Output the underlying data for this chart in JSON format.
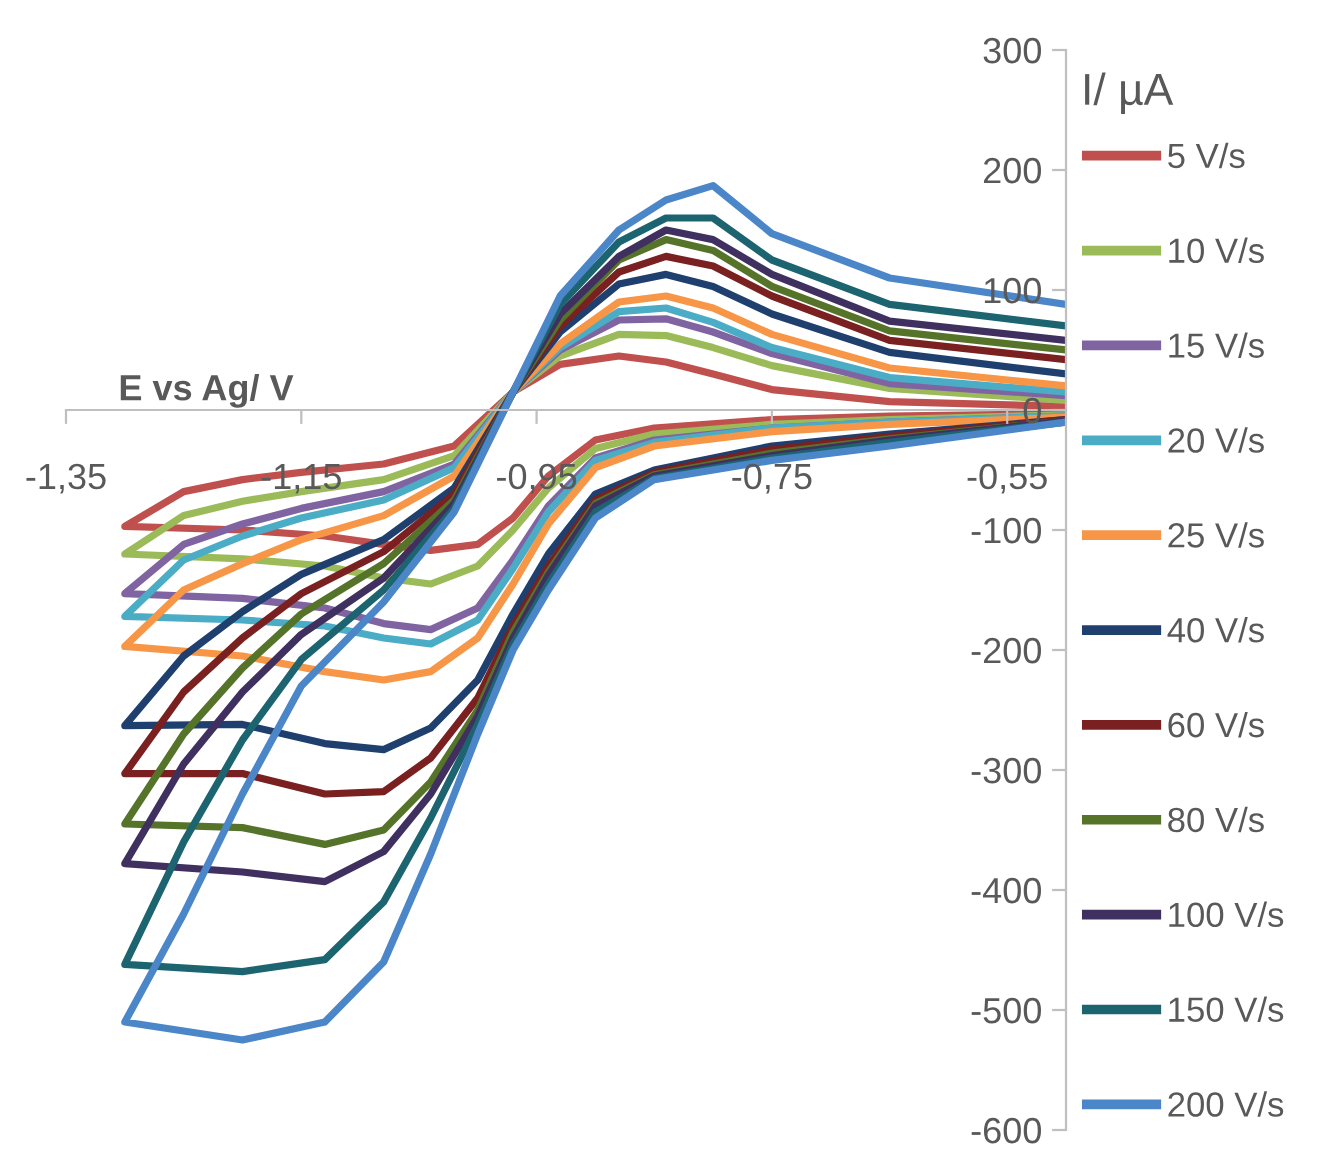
{
  "chart_data": {
    "type": "line",
    "xlabel": "E vs Ag/ V",
    "ylabel": "I/ µA",
    "x": [
      -0.5,
      -0.65,
      -0.75,
      -0.85,
      -0.9,
      -0.94,
      -0.97,
      -1.0,
      -1.04,
      -1.08,
      -1.13,
      -1.2,
      -1.3,
      -1.25,
      -1.2,
      -1.15,
      -1.08,
      -1.02,
      -0.97,
      -0.93,
      -0.88,
      -0.84,
      -0.8,
      -0.75,
      -0.65,
      -0.5
    ],
    "series": [
      {
        "name": "5 V/s",
        "color": "#c0504d",
        "values": [
          -3,
          -5,
          -8,
          -15,
          -25,
          -55,
          -90,
          -112,
          -117,
          -112,
          -105,
          -100,
          -97,
          -68,
          -58,
          -52,
          -45,
          -30,
          15,
          38,
          45,
          40,
          30,
          17,
          7,
          3
        ]
      },
      {
        "name": "10 V/s",
        "color": "#9bbb59",
        "values": [
          -4,
          -8,
          -12,
          -20,
          -32,
          -65,
          -100,
          -130,
          -145,
          -140,
          -130,
          -124,
          -120,
          -88,
          -76,
          -68,
          -58,
          -38,
          15,
          45,
          63,
          62,
          52,
          37,
          18,
          8
        ]
      },
      {
        "name": "15 V/s",
        "color": "#8064a2",
        "values": [
          -5,
          -10,
          -15,
          -25,
          -40,
          -80,
          -125,
          -165,
          -183,
          -178,
          -165,
          -157,
          -153,
          -112,
          -95,
          -82,
          -68,
          -45,
          15,
          50,
          75,
          76,
          65,
          47,
          22,
          12
        ]
      },
      {
        "name": "20 V/s",
        "color": "#4bacc6",
        "values": [
          -5,
          -10,
          -15,
          -27,
          -42,
          -85,
          -132,
          -175,
          -195,
          -190,
          -180,
          -175,
          -172,
          -125,
          -105,
          -90,
          -75,
          -48,
          15,
          52,
          82,
          85,
          73,
          52,
          27,
          15
        ]
      },
      {
        "name": "25 V/s",
        "color": "#f79646",
        "values": [
          -6,
          -12,
          -18,
          -30,
          -48,
          -95,
          -145,
          -190,
          -218,
          -225,
          -218,
          -205,
          -197,
          -150,
          -128,
          -108,
          -88,
          -55,
          15,
          55,
          90,
          95,
          85,
          63,
          35,
          20
        ]
      },
      {
        "name": "40 V/s",
        "color": "#1f3f6e",
        "values": [
          -8,
          -20,
          -30,
          -50,
          -70,
          -120,
          -170,
          -225,
          -265,
          -283,
          -278,
          -262,
          -263,
          -205,
          -168,
          -137,
          -108,
          -65,
          15,
          65,
          105,
          113,
          103,
          80,
          48,
          30
        ]
      },
      {
        "name": "60 V/s",
        "color": "#7a2020",
        "values": [
          -8,
          -22,
          -33,
          -52,
          -75,
          -130,
          -180,
          -240,
          -290,
          -318,
          -320,
          -303,
          -303,
          -235,
          -190,
          -153,
          -118,
          -70,
          15,
          70,
          115,
          128,
          120,
          95,
          58,
          42
        ]
      },
      {
        "name": "80 V/s",
        "color": "#56732a",
        "values": [
          -9,
          -24,
          -36,
          -54,
          -78,
          -135,
          -185,
          -250,
          -310,
          -350,
          -362,
          -348,
          -345,
          -270,
          -215,
          -170,
          -128,
          -75,
          15,
          75,
          125,
          142,
          133,
          103,
          66,
          50
        ]
      },
      {
        "name": "100 V/s",
        "color": "#3f3060",
        "values": [
          -9,
          -25,
          -38,
          -55,
          -80,
          -138,
          -190,
          -255,
          -320,
          -368,
          -393,
          -385,
          -378,
          -295,
          -235,
          -187,
          -140,
          -78,
          15,
          80,
          128,
          150,
          142,
          113,
          74,
          58
        ]
      },
      {
        "name": "150 V/s",
        "color": "#1c6470",
        "values": [
          -10,
          -27,
          -40,
          -57,
          -85,
          -145,
          -195,
          -262,
          -340,
          -410,
          -458,
          -468,
          -462,
          -360,
          -275,
          -208,
          -150,
          -82,
          15,
          88,
          140,
          160,
          160,
          125,
          88,
          70
        ]
      },
      {
        "name": "200 V/s",
        "color": "#4a86c8",
        "values": [
          -10,
          -30,
          -42,
          -58,
          -90,
          -150,
          -200,
          -270,
          -370,
          -460,
          -510,
          -525,
          -510,
          -420,
          -320,
          -230,
          -160,
          -85,
          15,
          95,
          150,
          175,
          187,
          147,
          110,
          88
        ]
      }
    ],
    "xlim": [
      -1.35,
      -0.5
    ],
    "xticks": [
      {
        "value": -1.35,
        "label": "-1,35"
      },
      {
        "value": -1.15,
        "label": "-1,15"
      },
      {
        "value": -0.95,
        "label": "-0,95"
      },
      {
        "value": -0.75,
        "label": "-0,75"
      },
      {
        "value": -0.55,
        "label": "-0,55"
      }
    ],
    "ylim": [
      -600,
      300
    ],
    "yticks": [
      -600,
      -500,
      -400,
      -300,
      -200,
      -100,
      0,
      100,
      200,
      300
    ],
    "grid": false,
    "legend": "right",
    "marker": "none",
    "line_style": "solid"
  }
}
